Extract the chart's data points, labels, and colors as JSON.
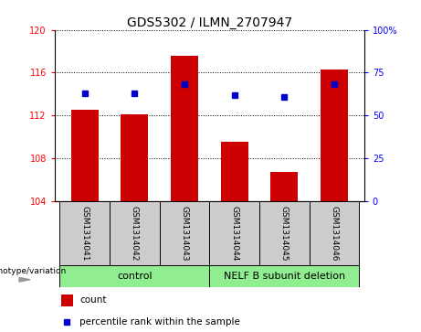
{
  "title": "GDS5302 / ILMN_2707947",
  "samples": [
    "GSM1314041",
    "GSM1314042",
    "GSM1314043",
    "GSM1314044",
    "GSM1314045",
    "GSM1314046"
  ],
  "bar_values": [
    112.5,
    112.1,
    117.6,
    109.5,
    106.7,
    116.3
  ],
  "dot_values": [
    63,
    63,
    68,
    62,
    61,
    68
  ],
  "ylim_left": [
    104,
    120
  ],
  "ylim_right": [
    0,
    100
  ],
  "yticks_left": [
    104,
    108,
    112,
    116,
    120
  ],
  "yticks_right": [
    0,
    25,
    50,
    75,
    100
  ],
  "ytick_labels_right": [
    "0",
    "25",
    "50",
    "75",
    "100%"
  ],
  "bar_color": "#cc0000",
  "dot_color": "#0000cc",
  "control_label": "control",
  "deletion_label": "NELF B subunit deletion",
  "genotype_label": "genotype/variation",
  "legend_count": "count",
  "legend_percentile": "percentile rank within the sample",
  "bar_bottom": 104,
  "sample_box_color": "#cccccc",
  "group_box_color": "#90EE90",
  "n_control": 3,
  "n_deletion": 3
}
